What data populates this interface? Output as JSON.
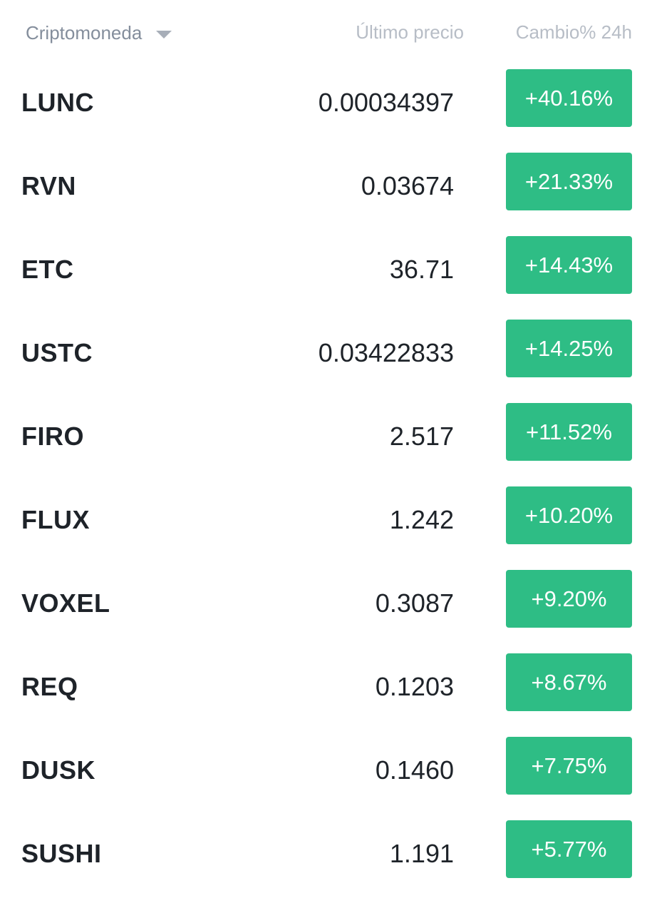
{
  "header": {
    "crypto_label": "Criptomoneda",
    "price_label": "Último precio",
    "change_label": "Cambio% 24h",
    "sort_icon": "caret-down-icon"
  },
  "colors": {
    "positive": "#2ebd85",
    "header_text": "#848e9c",
    "header_text_light": "#b7bdc6",
    "primary_text": "#1e2329"
  },
  "rows": [
    {
      "symbol": "LUNC",
      "price": "0.00034397",
      "change": "+40.16%"
    },
    {
      "symbol": "RVN",
      "price": "0.03674",
      "change": "+21.33%"
    },
    {
      "symbol": "ETC",
      "price": "36.71",
      "change": "+14.43%"
    },
    {
      "symbol": "USTC",
      "price": "0.03422833",
      "change": "+14.25%"
    },
    {
      "symbol": "FIRO",
      "price": "2.517",
      "change": "+11.52%"
    },
    {
      "symbol": "FLUX",
      "price": "1.242",
      "change": "+10.20%"
    },
    {
      "symbol": "VOXEL",
      "price": "0.3087",
      "change": "+9.20%"
    },
    {
      "symbol": "REQ",
      "price": "0.1203",
      "change": "+8.67%"
    },
    {
      "symbol": "DUSK",
      "price": "0.1460",
      "change": "+7.75%"
    },
    {
      "symbol": "SUSHI",
      "price": "1.191",
      "change": "+5.77%"
    }
  ]
}
